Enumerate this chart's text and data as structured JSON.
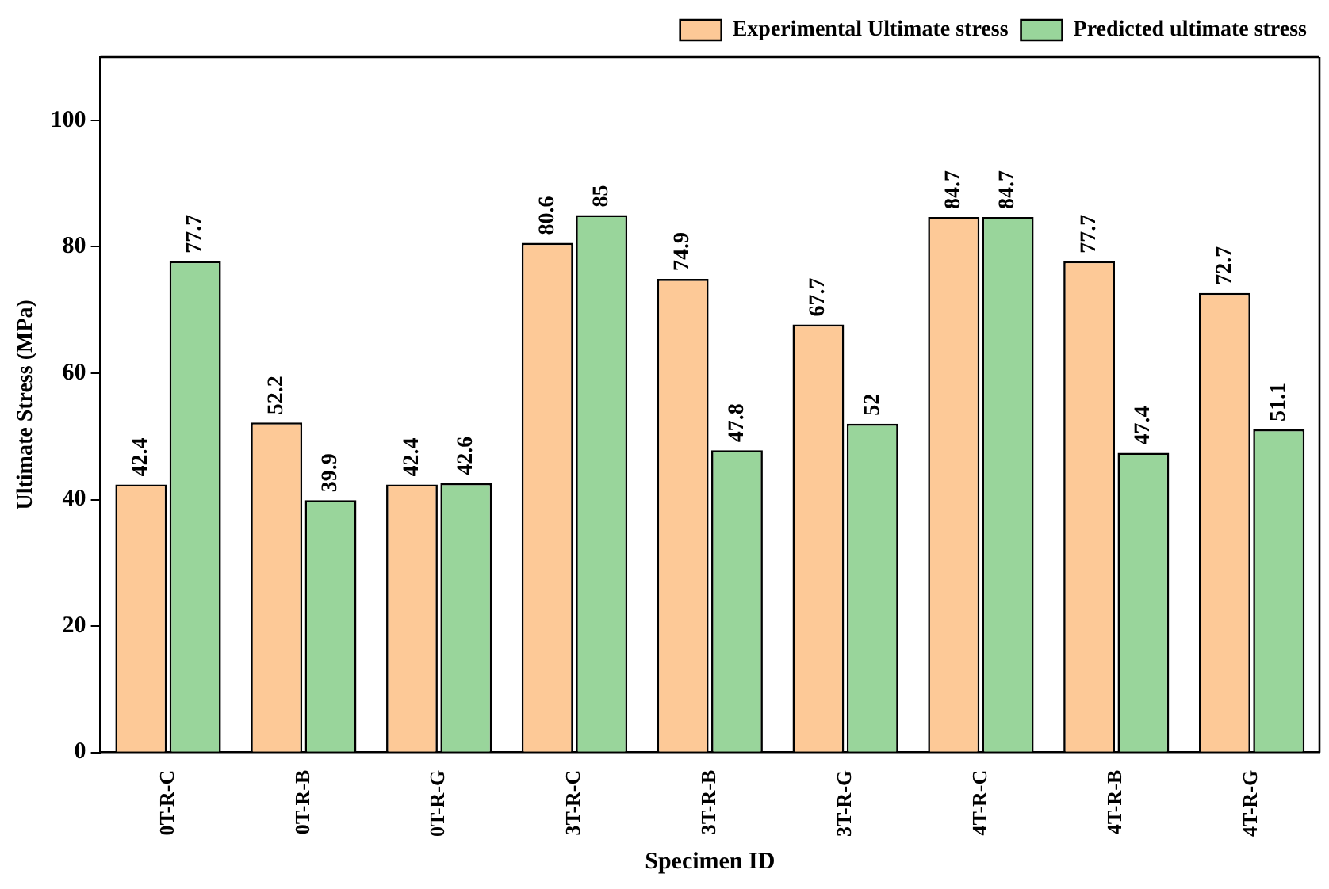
{
  "chart_data": {
    "type": "bar",
    "xlabel": "Specimen ID",
    "ylabel": "Ultimate Stress (MPa)",
    "categories": [
      "0T-R-C",
      "0T-R-B",
      "0T-R-G",
      "3T-R-C",
      "3T-R-B",
      "3T-R-G",
      "4T-R-C",
      "4T-R-B",
      "4T-R-G"
    ],
    "series": [
      {
        "name": "Experimental Ultimate stress",
        "color": "#fdc997",
        "values": [
          42.4,
          52.2,
          42.4,
          80.6,
          74.9,
          67.7,
          84.7,
          77.7,
          72.7
        ]
      },
      {
        "name": "Predicted ultimate stress",
        "color": "#99d59b",
        "values": [
          77.7,
          39.9,
          42.6,
          85,
          47.8,
          52,
          84.7,
          47.4,
          51.1
        ]
      }
    ],
    "ylim": [
      0,
      110
    ],
    "yticks": [
      0,
      20,
      40,
      60,
      80,
      100
    ],
    "grid": false,
    "legend": "top right",
    "data_labels": true
  }
}
